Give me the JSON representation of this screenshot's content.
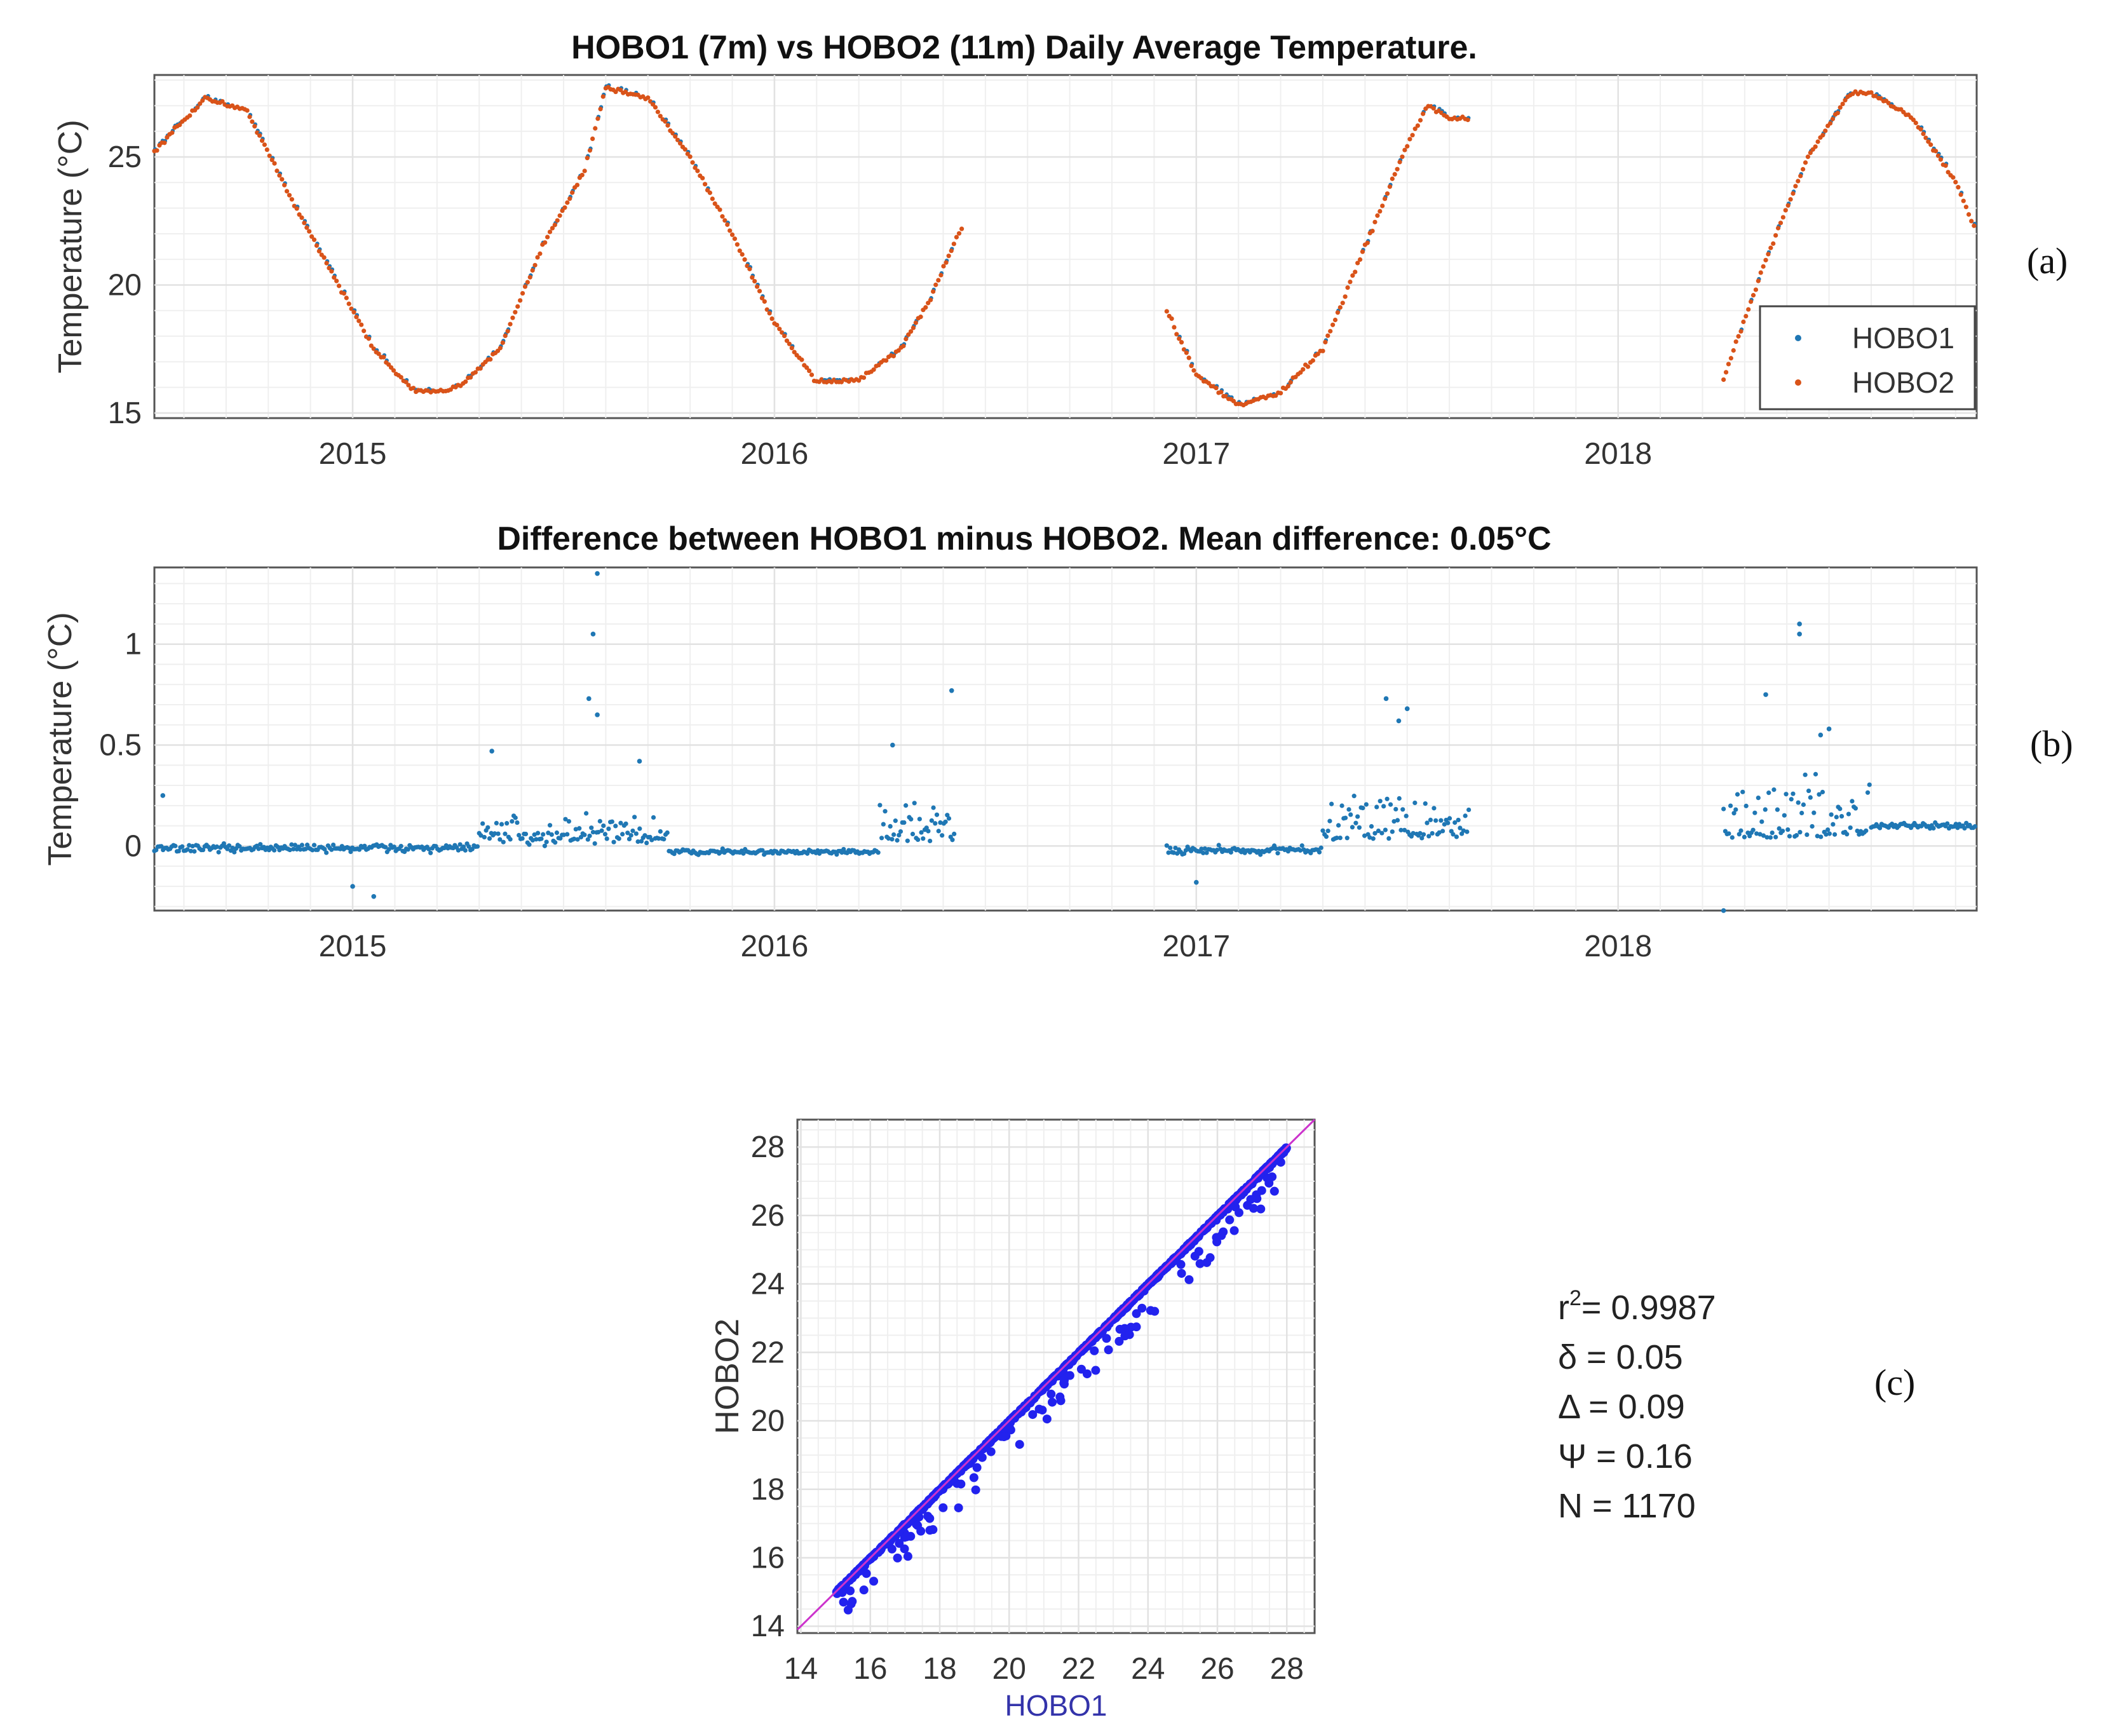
{
  "colors": {
    "hobo1": "#1f77b4",
    "hobo2": "#d95319",
    "scatter": "#2222ee",
    "identity": "#cc33cc",
    "grid": "#e2e2e2",
    "axis": "#555555"
  },
  "chart_data": [
    {
      "id": "a",
      "type": "scatter",
      "title": "HOBO1 (7m) vs HOBO2 (11m) Daily Average Temperature.",
      "xlabel": "",
      "ylabel": "Temperature (°C)",
      "xlim": [
        2014.53,
        2018.85
      ],
      "ylim": [
        14.8,
        28.2
      ],
      "xticks": [
        2015,
        2016,
        2017,
        2018
      ],
      "xtick_labels": [
        "2015",
        "2016",
        "2017",
        "2018"
      ],
      "yticks": [
        15,
        20,
        25
      ],
      "ytick_labels": [
        "15",
        "20",
        "25"
      ],
      "grid": true,
      "legend_position": "bottom-right",
      "panel_label": "(a)",
      "series": [
        {
          "name": "HOBO1",
          "color_key": "hobo1"
        },
        {
          "name": "HOBO2",
          "color_key": "hobo2"
        }
      ],
      "segments": [
        {
          "x": [
            2014.53,
            2014.65,
            2014.75,
            2014.85,
            2014.95,
            2015.05,
            2015.15,
            2015.25,
            2015.35,
            2015.45,
            2015.55,
            2015.6,
            2015.7,
            2015.8,
            2015.9,
            2016.0,
            2016.1,
            2016.2,
            2016.3,
            2016.37,
            2016.45
          ],
          "y": [
            25.2,
            27.3,
            26.8,
            23.5,
            20.5,
            17.5,
            15.8,
            16.0,
            17.5,
            21.5,
            24.5,
            27.7,
            27.3,
            25.0,
            22.0,
            18.5,
            16.2,
            16.3,
            17.5,
            19.5,
            22.5
          ]
        },
        {
          "x": [
            2016.93,
            2017.0,
            2017.1,
            2017.2,
            2017.3,
            2017.4,
            2017.5,
            2017.55,
            2017.6,
            2017.65
          ],
          "y": [
            19.0,
            16.5,
            15.3,
            15.8,
            17.5,
            21.5,
            25.5,
            27.0,
            26.5,
            26.5
          ]
        },
        {
          "x": [
            2018.25,
            2018.35,
            2018.45,
            2018.55,
            2018.6,
            2018.7,
            2018.8,
            2018.85
          ],
          "y": [
            16.3,
            21.0,
            25.0,
            27.5,
            27.5,
            26.5,
            24.0,
            22.0
          ]
        }
      ]
    },
    {
      "id": "b",
      "type": "scatter",
      "title": "Difference between HOBO1 minus HOBO2. Mean difference: 0.05°C",
      "xlabel": "",
      "ylabel": "Temperature (°C)",
      "xlim": [
        2014.53,
        2018.85
      ],
      "ylim": [
        -0.32,
        1.38
      ],
      "xticks": [
        2015,
        2016,
        2017,
        2018
      ],
      "xtick_labels": [
        "2015",
        "2016",
        "2017",
        "2018"
      ],
      "yticks": [
        0,
        0.5,
        1
      ],
      "ytick_labels": [
        "0",
        "0.5",
        "1"
      ],
      "grid": true,
      "panel_label": "(b)",
      "mean_difference": 0.05,
      "series_name": "HOBO1 - HOBO2",
      "outliers": [
        [
          2015.58,
          1.35
        ],
        [
          2015.57,
          1.05
        ],
        [
          2015.56,
          0.73
        ],
        [
          2015.58,
          0.65
        ],
        [
          2016.42,
          0.77
        ],
        [
          2016.28,
          0.5
        ],
        [
          2015.33,
          0.47
        ],
        [
          2015.68,
          0.42
        ],
        [
          2017.45,
          0.73
        ],
        [
          2017.5,
          0.68
        ],
        [
          2017.48,
          0.62
        ],
        [
          2018.43,
          1.1
        ],
        [
          2018.43,
          1.05
        ],
        [
          2018.35,
          0.75
        ],
        [
          2018.5,
          0.58
        ],
        [
          2018.48,
          0.55
        ],
        [
          2014.55,
          0.25
        ],
        [
          2015.0,
          -0.2
        ],
        [
          2015.05,
          -0.25
        ],
        [
          2017.0,
          -0.18
        ],
        [
          2018.25,
          -0.32
        ]
      ],
      "segments": [
        {
          "x_start": 2014.53,
          "x_end": 2015.3,
          "base": -0.01,
          "spread": 0.05
        },
        {
          "x_start": 2015.3,
          "x_end": 2015.75,
          "base": 0.08,
          "spread": 0.18
        },
        {
          "x_start": 2015.75,
          "x_end": 2016.25,
          "base": -0.03,
          "spread": 0.03
        },
        {
          "x_start": 2016.25,
          "x_end": 2016.43,
          "base": 0.12,
          "spread": 0.22
        },
        {
          "x_start": 2016.93,
          "x_end": 2017.3,
          "base": -0.02,
          "spread": 0.05
        },
        {
          "x_start": 2017.3,
          "x_end": 2017.65,
          "base": 0.15,
          "spread": 0.3
        },
        {
          "x_start": 2018.25,
          "x_end": 2018.6,
          "base": 0.2,
          "spread": 0.3
        },
        {
          "x_start": 2018.6,
          "x_end": 2018.85,
          "base": 0.1,
          "spread": 0.04
        }
      ]
    },
    {
      "id": "c",
      "type": "scatter",
      "title": "",
      "xlabel": "HOBO1",
      "ylabel": "HOBO2",
      "xlim": [
        13.9,
        28.8
      ],
      "ylim": [
        13.8,
        28.8
      ],
      "xticks": [
        14,
        16,
        18,
        20,
        22,
        24,
        26,
        28
      ],
      "xtick_labels": [
        "14",
        "16",
        "18",
        "20",
        "22",
        "24",
        "26",
        "28"
      ],
      "yticks": [
        14,
        16,
        18,
        20,
        22,
        24,
        26,
        28
      ],
      "ytick_labels": [
        "14",
        "16",
        "18",
        "20",
        "22",
        "24",
        "26",
        "28"
      ],
      "grid": true,
      "panel_label": "(c)",
      "identity_line": true,
      "point_range": [
        15.0,
        28.0
      ],
      "stats": {
        "r2_prefix": "r",
        "r2_sup": "2",
        "r2_value": "= 0.9987",
        "delta_small": "δ = 0.05",
        "delta_large": "Δ = 0.09",
        "psi": "Ψ = 0.16",
        "n": "N = 1170"
      }
    }
  ]
}
